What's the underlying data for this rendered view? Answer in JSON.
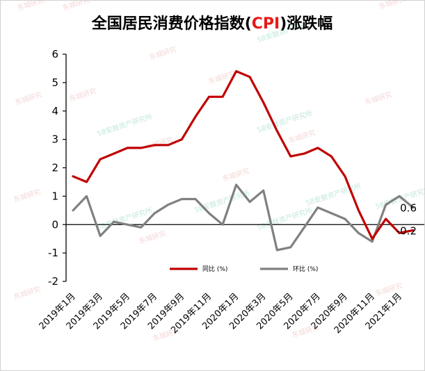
{
  "chart_data": {
    "type": "line",
    "title": {
      "prefix": "全国居民消费价格指数(",
      "highlight": "CPI",
      "suffix": ")涨跌幅",
      "highlight_color": "#e81919"
    },
    "xlabel": "",
    "ylabel": "",
    "ylim": [
      -2,
      6
    ],
    "yticks": [
      "-2",
      "-1",
      "0",
      "1",
      "2",
      "3",
      "4",
      "5",
      "6"
    ],
    "x": [
      "2019年1月",
      "2019年2月",
      "2019年3月",
      "2019年4月",
      "2019年5月",
      "2019年6月",
      "2019年7月",
      "2019年8月",
      "2019年9月",
      "2019年10月",
      "2019年11月",
      "2019年12月",
      "2020年1月",
      "2020年2月",
      "2020年3月",
      "2020年4月",
      "2020年5月",
      "2020年6月",
      "2020年7月",
      "2020年8月",
      "2020年9月",
      "2020年10月",
      "2020年11月",
      "2020年12月",
      "2021年1月",
      "2021年2月"
    ],
    "xtick_labels": [
      "2019年1月",
      "2019年3月",
      "2019年5月",
      "2019年7月",
      "2019年9月",
      "2019年11月",
      "2020年1月",
      "2020年3月",
      "2020年5月",
      "2020年7月",
      "2020年9月",
      "2020年11月",
      "2021年1月"
    ],
    "series": [
      {
        "name": "同比 (%)",
        "color": "#c00000",
        "values": [
          1.7,
          1.5,
          2.3,
          2.5,
          2.7,
          2.7,
          2.8,
          2.8,
          3.0,
          3.8,
          4.5,
          4.5,
          5.4,
          5.2,
          4.3,
          3.3,
          2.4,
          2.5,
          2.7,
          2.4,
          1.7,
          0.5,
          -0.5,
          0.2,
          -0.3,
          -0.2
        ],
        "end_label": "-0.2"
      },
      {
        "name": "环比 (%)",
        "color": "#808080",
        "values": [
          0.5,
          1.0,
          -0.4,
          0.1,
          0.0,
          -0.1,
          0.4,
          0.7,
          0.9,
          0.9,
          0.4,
          0.0,
          1.4,
          0.8,
          1.2,
          -0.9,
          -0.8,
          -0.1,
          0.6,
          0.4,
          0.2,
          -0.3,
          -0.6,
          0.7,
          1.0,
          0.6
        ],
        "end_label": "0.6"
      }
    ],
    "legend_position": "bottom-inside",
    "grid": false
  },
  "watermarks": {
    "brand_a": "东城研究",
    "brand_b": "58安鼓资产研究所"
  }
}
